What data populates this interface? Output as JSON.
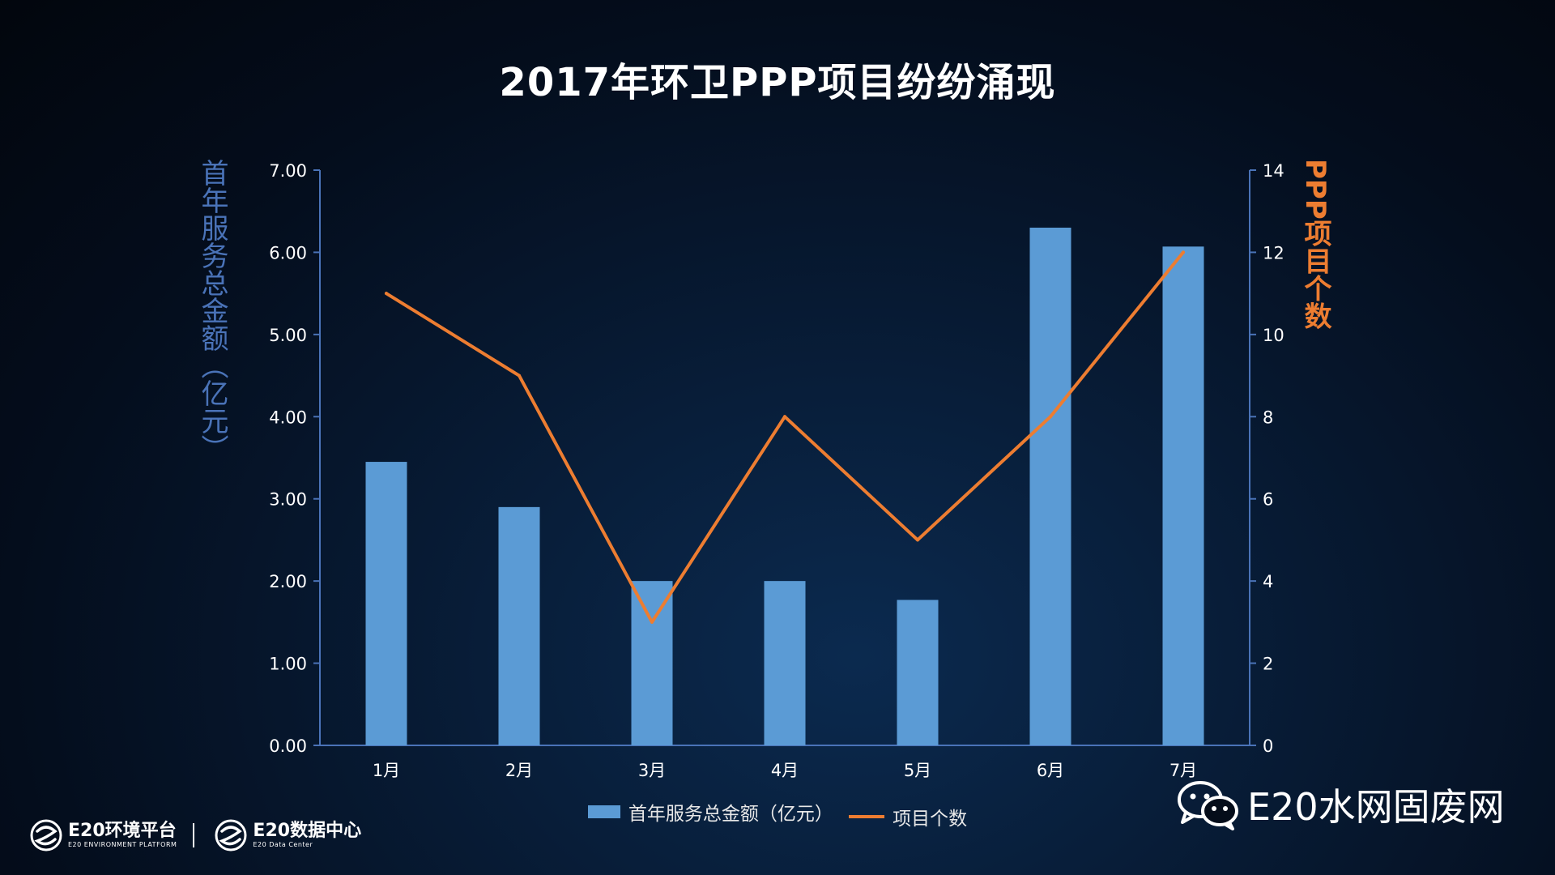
{
  "title": "2017年环卫PPP项目纷纷涌现",
  "chart_data": {
    "type": "bar",
    "categories": [
      "1月",
      "2月",
      "3月",
      "4月",
      "5月",
      "6月",
      "7月"
    ],
    "series": [
      {
        "name": "首年服务总金额（亿元）",
        "type": "bar",
        "axis": "left",
        "values": [
          3.45,
          2.9,
          2.0,
          2.0,
          1.77,
          6.3,
          6.07
        ]
      },
      {
        "name": "项目个数",
        "type": "line",
        "axis": "right",
        "values": [
          11,
          9,
          3,
          8,
          5,
          8,
          12
        ]
      }
    ],
    "ylabel_left": "首年服务总金额（亿元）",
    "ylabel_right": "PPP项目个数",
    "ylim_left": [
      0,
      7
    ],
    "ylim_right": [
      0,
      14
    ],
    "yticks_left": [
      "0.00",
      "1.00",
      "2.00",
      "3.00",
      "4.00",
      "5.00",
      "6.00",
      "7.00"
    ],
    "yticks_right": [
      "0",
      "2",
      "4",
      "6",
      "8",
      "10",
      "12",
      "14"
    ],
    "grid": false,
    "legend_position": "bottom",
    "colors": {
      "bar": "#5b9bd5",
      "line": "#ed7d31",
      "axis": "#4a73b8"
    }
  },
  "watermark": {
    "brand": "E20水网固废网",
    "icon": "wechat-icon"
  },
  "footer": {
    "logo1_main": "E20环境平台",
    "logo1_sub": "E20 ENVIRONMENT PLATFORM",
    "logo2_main": "E20数据中心",
    "logo2_sub": "E20 Data Center"
  }
}
